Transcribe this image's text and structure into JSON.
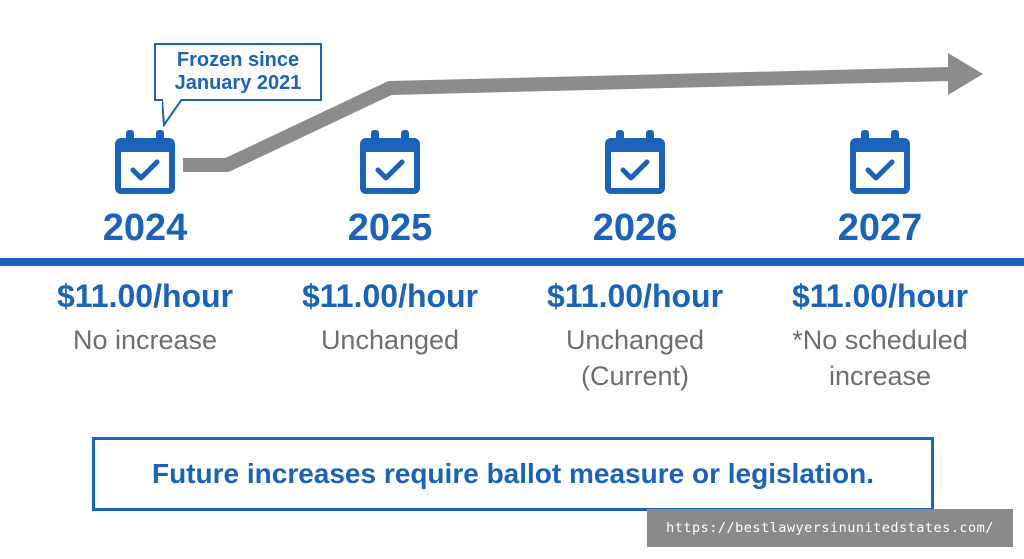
{
  "callout": {
    "line1": "Frozen since",
    "line2": "January 2021"
  },
  "columns": [
    {
      "year": "2024",
      "price": "$11.00/hour",
      "note_line1": "No increase",
      "note_line2": "",
      "note_line3": ""
    },
    {
      "year": "2025",
      "price": "$11.00/hour",
      "note_line1": "Unchanged",
      "note_line2": "",
      "note_line3": ""
    },
    {
      "year": "2026",
      "price": "$11.00/hour",
      "note_line1": "Unchanged",
      "note_line2": "(Current)",
      "note_line3": ""
    },
    {
      "year": "2027",
      "price": "$11.00/hour",
      "note_line1": "*No scheduled",
      "note_line2": "increase",
      "note_line3": ""
    }
  ],
  "footer": {
    "text": "Future increases require ballot measure or legislation."
  },
  "watermark": {
    "text": "https://bestlawyersinunitedstates.com/"
  },
  "icons": {
    "calendar": "calendar-check-icon",
    "arrow": "arrow-right-icon"
  },
  "colors": {
    "accent": "#1a63b8",
    "arrow": "#8c8c8c",
    "note": "#6e6e6e"
  }
}
